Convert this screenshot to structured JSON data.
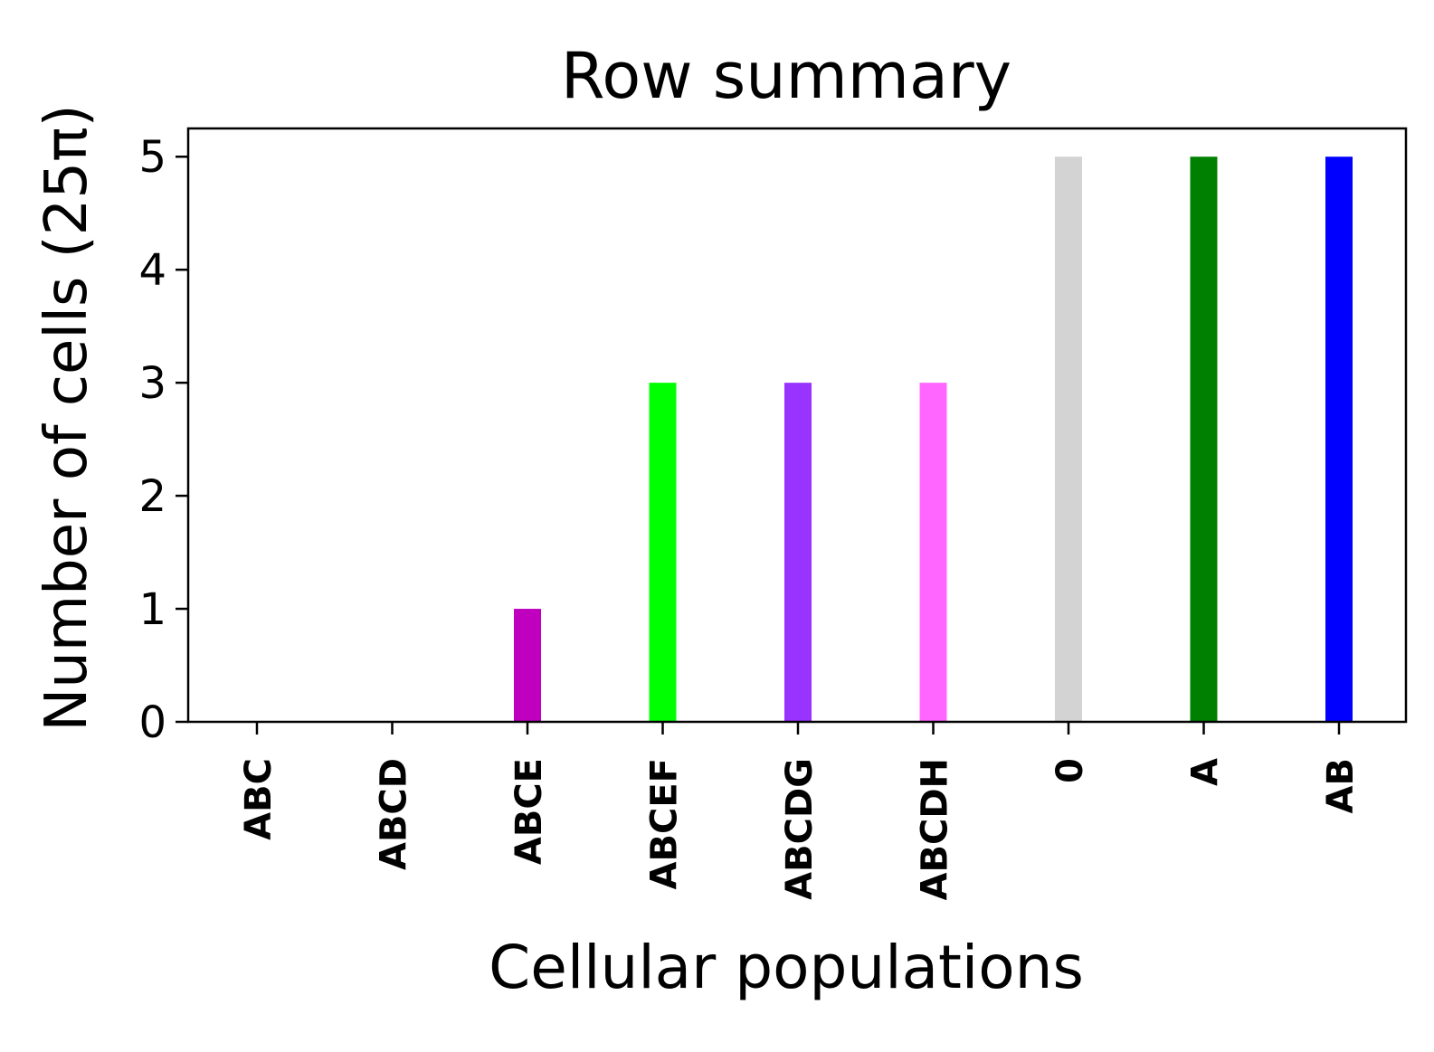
{
  "chart_data": {
    "type": "bar",
    "title": "Row summary",
    "xlabel": "Cellular populations",
    "ylabel": "Number of cells (25π)",
    "categories": [
      "ABC",
      "ABCD",
      "ABCE",
      "ABCEF",
      "ABCDG",
      "ABCDH",
      "0",
      "A",
      "AB"
    ],
    "values": [
      0,
      0,
      1,
      3,
      3,
      3,
      5,
      5,
      5
    ],
    "colors": [
      "#bf00bf",
      "#bf00bf",
      "#bf00bf",
      "#00ff00",
      "#9933ff",
      "#ff66ff",
      "#d3d3d3",
      "#008000",
      "#0000ff"
    ],
    "ylim": [
      0,
      5.25
    ],
    "yticks": [
      0,
      1,
      2,
      3,
      4,
      5
    ],
    "grid": false,
    "legend": "none"
  }
}
